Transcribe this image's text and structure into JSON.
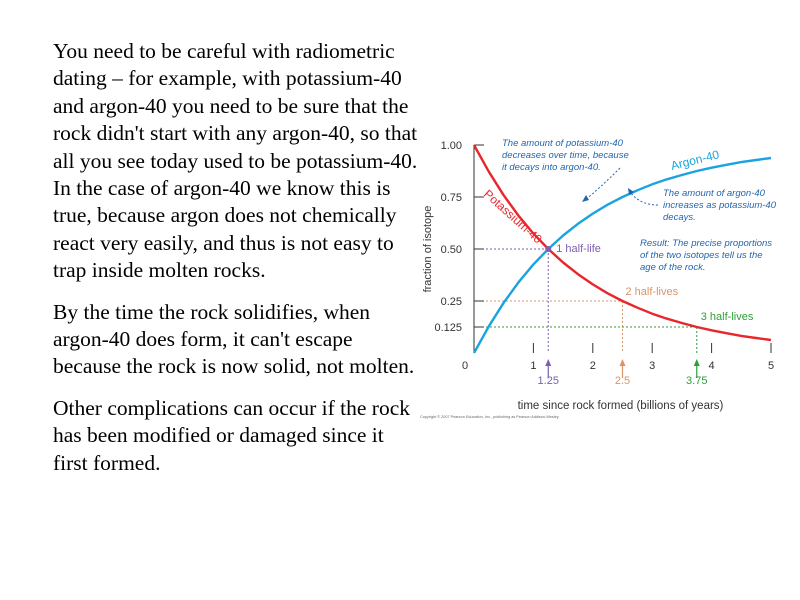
{
  "slide": {
    "paragraphs": [
      "You need to be careful with radiometric dating – for example, with potassium-40 and argon-40 you need to be sure that the rock didn't start with any argon-40, so that all you see today used to be potassium-40.  In the case of argon-40 we know this is true, because argon does not chemically react very easily, and thus is not easy to trap inside molten rocks.",
      "By the time the rock solidifies, when argon-40 does form, it can't escape because the rock is now solid, not molten.",
      "Other complications can occur if the rock has been modified or damaged since it first formed."
    ]
  },
  "chart_data": {
    "type": "line",
    "xlabel": "time since rock formed (billions of years)",
    "ylabel": "fraction of isotope",
    "xlim": [
      0,
      5
    ],
    "ylim": [
      0,
      1
    ],
    "x_ticks": [
      "0",
      "1",
      "2",
      "3",
      "4",
      "5"
    ],
    "y_ticks": [
      "1.00",
      "0.75",
      "0.50",
      "0.25",
      "0.125"
    ],
    "y_tick_values": [
      1.0,
      0.75,
      0.5,
      0.25,
      0.125
    ],
    "half_life": 1.25,
    "series": [
      {
        "name": "Potassium-40",
        "color": "#e8262b",
        "x": [
          0,
          0.25,
          0.5,
          0.75,
          1.0,
          1.25,
          1.5,
          1.75,
          2.0,
          2.25,
          2.5,
          2.75,
          3.0,
          3.25,
          3.5,
          3.75,
          4.0,
          4.25,
          4.5,
          4.75,
          5.0
        ],
        "y": [
          1.0,
          0.871,
          0.758,
          0.66,
          0.574,
          0.5,
          0.435,
          0.379,
          0.33,
          0.287,
          0.25,
          0.218,
          0.189,
          0.165,
          0.144,
          0.125,
          0.109,
          0.095,
          0.082,
          0.072,
          0.0625
        ]
      },
      {
        "name": "Argon-40",
        "color": "#1aa3e0",
        "x": [
          0,
          0.25,
          0.5,
          0.75,
          1.0,
          1.25,
          1.5,
          1.75,
          2.0,
          2.25,
          2.5,
          2.75,
          3.0,
          3.25,
          3.5,
          3.75,
          4.0,
          4.25,
          4.5,
          4.75,
          5.0
        ],
        "y": [
          0.0,
          0.129,
          0.242,
          0.34,
          0.426,
          0.5,
          0.565,
          0.621,
          0.67,
          0.713,
          0.75,
          0.782,
          0.811,
          0.835,
          0.856,
          0.875,
          0.891,
          0.905,
          0.918,
          0.928,
          0.9375
        ]
      }
    ],
    "markers": [
      {
        "x": 1.25,
        "y": 0.5,
        "label": "1 half-life",
        "tick_label": "1.25",
        "color": "#7b5fb0"
      },
      {
        "x": 2.5,
        "y": 0.25,
        "label": "2 half-lives",
        "tick_label": "2.5",
        "color": "#d9956a"
      },
      {
        "x": 3.75,
        "y": 0.125,
        "label": "3 half-lives",
        "tick_label": "3.75",
        "color": "#2f9e3a"
      }
    ],
    "annotations": {
      "potassium": "The amount of potassium-40 decreases over time, because it decays into argon-40.",
      "argon": "The amount of argon-40 increases as potassium-40 decays.",
      "result": "Result: The precise proportions of the two isotopes tell us the age of the rock."
    },
    "copyright": "Copyright © 2007 Pearson Education, Inc., publishing as Pearson Addison-Wesley."
  }
}
